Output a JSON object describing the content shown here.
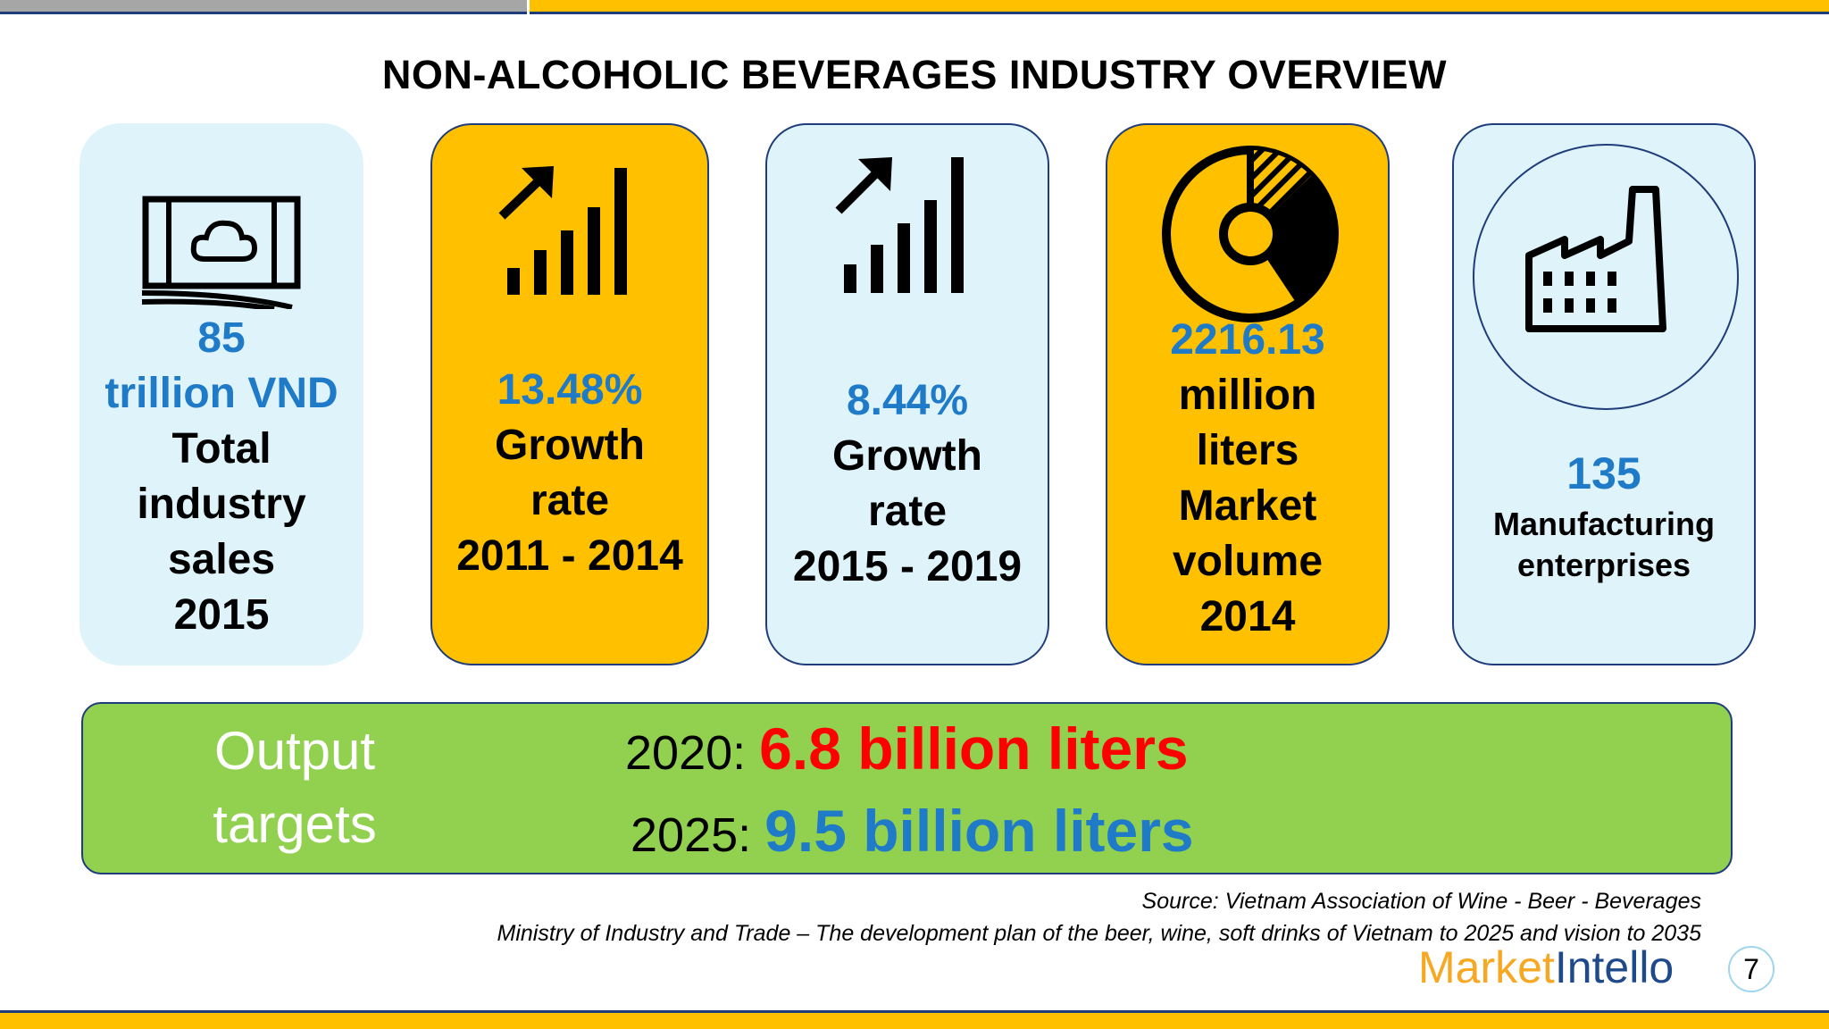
{
  "title": "NON-ALCOHOLIC BEVERAGES INDUSTRY OVERVIEW",
  "cards": [
    {
      "value": "85",
      "unit": "trillion VND",
      "desc": [
        "Total",
        "industry",
        "sales",
        "2015"
      ],
      "icon": "money-icon"
    },
    {
      "value": "13.48%",
      "desc": [
        "Growth",
        "rate",
        "2011 - 2014"
      ],
      "icon": "growth-chart-icon"
    },
    {
      "value": "8.44%",
      "desc": [
        "Growth",
        "rate",
        "2015 - 2019"
      ],
      "icon": "growth-chart-icon"
    },
    {
      "value": "2216.13",
      "unit": [
        "million",
        "liters"
      ],
      "desc": [
        "Market",
        "volume",
        "2014"
      ],
      "icon": "pie-chart-icon"
    },
    {
      "value": "135",
      "desc": [
        "Manufacturing",
        "enterprises"
      ],
      "icon": "factory-icon"
    }
  ],
  "targets": {
    "label": [
      "Output",
      "targets"
    ],
    "rows": [
      {
        "year": "2020:",
        "value": "6.8 billion liters",
        "color": "#ff0000"
      },
      {
        "year": "2025:",
        "value": "9.5 billion liters",
        "color": "#1f7ac8"
      }
    ]
  },
  "source": {
    "line1": "Source: Vietnam Association of Wine - Beer - Beverages",
    "line2": "Ministry of Industry and Trade – The development plan of the beer, wine, soft drinks of Vietnam to 2025 and vision to 2035"
  },
  "logo": {
    "part1": "Market",
    "part2": "Intello"
  },
  "page_number": "7",
  "colors": {
    "accent_yellow": "#ffc000",
    "light_blue": "#dff3fb",
    "green": "#92d050",
    "value_blue": "#1f7ac8",
    "border_navy": "#1f3d7a"
  }
}
